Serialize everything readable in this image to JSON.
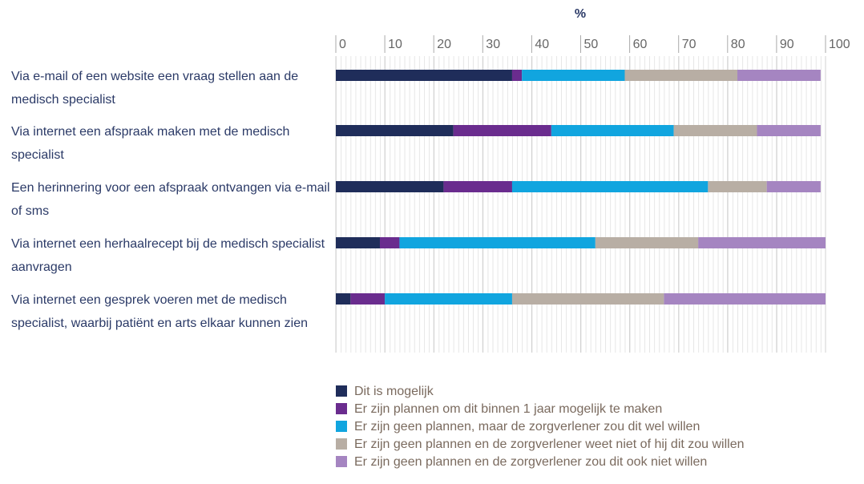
{
  "chart_data": {
    "type": "stacked_barh",
    "xlabel": "%",
    "categories": [
      "Via e-mail of een website een vraag stellen aan de medisch specialist",
      "Via internet een afspraak maken met de medisch specialist",
      "Een herinnering voor een afspraak ontvangen via e-mail of sms",
      "Via internet een herhaalrecept bij de medisch specialist aanvragen",
      "Via internet een gesprek voeren met de medisch specialist, waarbij patiënt en arts elkaar kunnen zien"
    ],
    "series": [
      {
        "name": "Dit is mogelijk",
        "color": "#1f2d5a",
        "values": [
          36,
          24,
          22,
          9,
          3
        ]
      },
      {
        "name": "Er zijn plannen om dit binnen 1 jaar mogelijk te maken",
        "color": "#6a2c8e",
        "values": [
          2,
          20,
          14,
          4,
          7
        ]
      },
      {
        "name": "Er zijn geen plannen, maar de zorgverlener zou dit wel willen",
        "color": "#11a5df",
        "values": [
          21,
          25,
          40,
          40,
          26
        ]
      },
      {
        "name": "Er zijn geen plannen en de zorgverlener weet niet of hij dit zou willen",
        "color": "#b8aea4",
        "values": [
          23,
          17,
          12,
          21,
          31
        ]
      },
      {
        "name": "Er zijn geen plannen en de zorgverlener zou dit ook niet willen",
        "color": "#a585c1",
        "values": [
          17,
          13,
          11,
          26,
          33
        ]
      }
    ],
    "xlim": [
      0,
      100
    ],
    "xticks": [
      0,
      10,
      20,
      30,
      40,
      50,
      60,
      70,
      80,
      90,
      100
    ],
    "grid": true
  }
}
